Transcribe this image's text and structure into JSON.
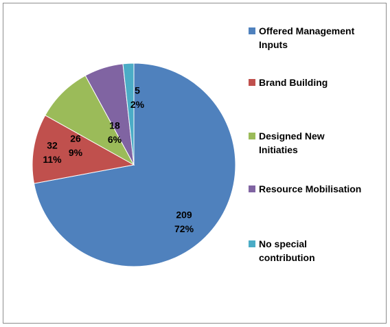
{
  "chart_data": {
    "type": "pie",
    "categories": [
      "Offered Management Inputs",
      "Brand Building",
      "Designed New Initiaties",
      "Resource Mobilisation",
      "No special contribution"
    ],
    "values": [
      209,
      32,
      26,
      18,
      5
    ],
    "percents": [
      72,
      11,
      9,
      6,
      2
    ],
    "colors": [
      "#4f81bd",
      "#c0504d",
      "#9bbb59",
      "#8064a2",
      "#4bacc6"
    ],
    "legend": "right"
  }
}
